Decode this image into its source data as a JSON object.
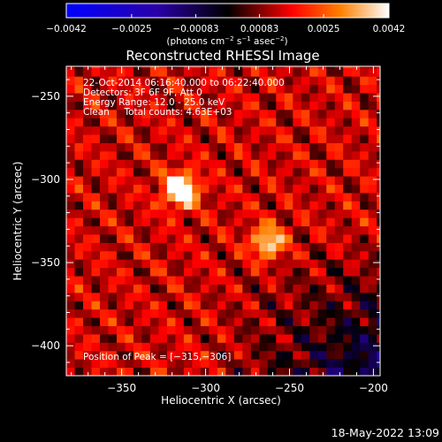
{
  "chart_data": {
    "type": "heatmap",
    "title": "Reconstructed RHESSI Image",
    "xlabel": "Heliocentric X (arcsec)",
    "ylabel": "Heliocentric Y (arcsec)",
    "xlim": [
      -383,
      -196
    ],
    "ylim": [
      -418,
      -232
    ],
    "xticks": [
      -350,
      -300,
      -250,
      -200
    ],
    "yticks": [
      -250,
      -300,
      -350,
      -400
    ],
    "xtick_labels": [
      "−350",
      "−300",
      "−250",
      "−200"
    ],
    "ytick_labels": [
      "−250",
      "−300",
      "−350",
      "−400"
    ],
    "colorbar": {
      "min": -0.0042,
      "max": 0.0042,
      "ticks": [
        -0.0042,
        -0.0025,
        -0.00083,
        0.00083,
        0.0025,
        0.0042
      ],
      "tick_labels": [
        "−0.0042",
        "−0.0025",
        "−0.00083",
        "0.00083",
        "0.0025",
        "0.0042"
      ],
      "unit_label_parts": [
        "(photons cm",
        "−2",
        " s",
        "−1",
        " asec",
        "−2",
        ")"
      ],
      "colormap": [
        "#0000ff",
        "#2a00a8",
        "#000000",
        "#ff0000",
        "#ff8000",
        "#ffffff"
      ]
    },
    "annotations": [
      "22-Oct-2014 06:16:40.000 to 06:22:40.000",
      "Detectors: 3F 6F 9F, Att 0",
      "Energy Range: 12.0 - 25.0 keV",
      "Clean     Total counts: 4.63E+03"
    ],
    "peak_label": "Position of Peak = [−315,−306]",
    "peak": [
      -315,
      -306
    ],
    "sources": [
      {
        "x": -315,
        "y": -306,
        "value": 0.0042
      },
      {
        "x": -263,
        "y": -338,
        "value": 0.0028
      }
    ]
  },
  "footer": {
    "timestamp": "18-May-2022 13:09"
  }
}
